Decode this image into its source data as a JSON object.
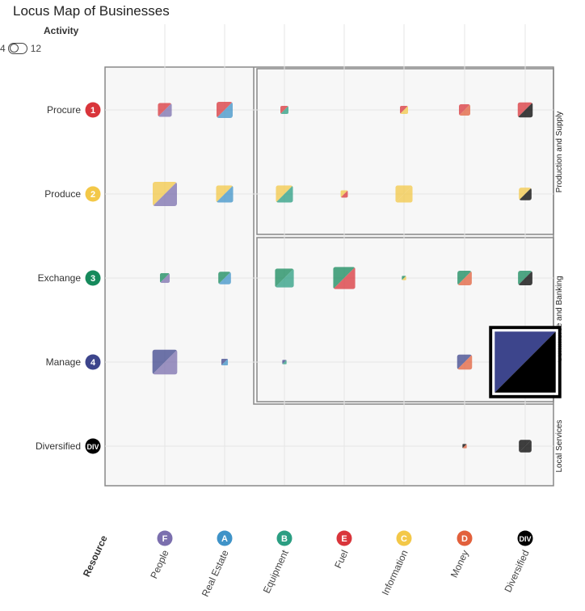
{
  "title": "Locus Map of Businesses",
  "activity_filter": {
    "label": "Activity",
    "min": "4",
    "max": "12"
  },
  "colors": {
    "F": "#7b6fae",
    "A": "#3f93c8",
    "B": "#2b9e82",
    "E": "#d9353b",
    "C": "#f3c848",
    "D": "#e2603c",
    "DIV": "#000000",
    "1": "#d9353b",
    "2": "#f3c848",
    "3": "#168a5c",
    "4": "#3d458c"
  },
  "chart_data": {
    "type": "heatmap",
    "title": "Locus Map of Businesses",
    "xlabel": "Resource",
    "ylabel": "",
    "columns": [
      {
        "code": "F",
        "label": "People"
      },
      {
        "code": "A",
        "label": "Real Estate"
      },
      {
        "code": "B",
        "label": "Equipment"
      },
      {
        "code": "E",
        "label": "Fuel"
      },
      {
        "code": "C",
        "label": "Information"
      },
      {
        "code": "D",
        "label": "Money"
      },
      {
        "code": "DIV",
        "label": "Diversified"
      }
    ],
    "rows": [
      {
        "code": "1",
        "label": "Procure"
      },
      {
        "code": "2",
        "label": "Produce"
      },
      {
        "code": "3",
        "label": "Exchange"
      },
      {
        "code": "4",
        "label": "Manage"
      },
      {
        "code": "DIV",
        "label": "Diversified"
      }
    ],
    "regions": [
      {
        "label": "Production and Supply"
      },
      {
        "label": "Commerce and Banking"
      },
      {
        "label": "Local Services"
      }
    ],
    "cells": [
      {
        "row": "1",
        "col": "F",
        "value": 3
      },
      {
        "row": "1",
        "col": "A",
        "value": 4
      },
      {
        "row": "1",
        "col": "B",
        "value": 1
      },
      {
        "row": "1",
        "col": "C",
        "value": 1
      },
      {
        "row": "1",
        "col": "D",
        "value": 2
      },
      {
        "row": "1",
        "col": "DIV",
        "value": 3.5
      },
      {
        "row": "2",
        "col": "F",
        "value": 9
      },
      {
        "row": "2",
        "col": "A",
        "value": 4.5
      },
      {
        "row": "2",
        "col": "B",
        "value": 4.5
      },
      {
        "row": "2",
        "col": "E",
        "value": 0.8
      },
      {
        "row": "2",
        "col": "C",
        "value": 4.5
      },
      {
        "row": "2",
        "col": "DIV",
        "value": 2.5
      },
      {
        "row": "3",
        "col": "F",
        "value": 1.5
      },
      {
        "row": "3",
        "col": "A",
        "value": 2.5
      },
      {
        "row": "3",
        "col": "B",
        "value": 5.5
      },
      {
        "row": "3",
        "col": "E",
        "value": 7.5
      },
      {
        "row": "3",
        "col": "C",
        "value": 0.3
      },
      {
        "row": "3",
        "col": "D",
        "value": 3.2
      },
      {
        "row": "3",
        "col": "DIV",
        "value": 3.2
      },
      {
        "row": "4",
        "col": "F",
        "value": 9.5
      },
      {
        "row": "4",
        "col": "A",
        "value": 0.7
      },
      {
        "row": "4",
        "col": "B",
        "value": 0.3
      },
      {
        "row": "4",
        "col": "D",
        "value": 3.5
      },
      {
        "row": "4",
        "col": "DIV",
        "value": 60
      },
      {
        "row": "DIV",
        "col": "D",
        "value": 0.3
      },
      {
        "row": "DIV",
        "col": "DIV",
        "value": 2.5
      }
    ],
    "highlighted_cell": {
      "row": "4",
      "col": "DIV"
    }
  }
}
